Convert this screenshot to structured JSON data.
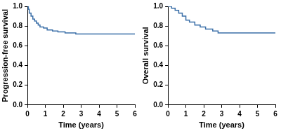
{
  "chart_data": [
    {
      "type": "line",
      "line_style": "step",
      "color": "#3b6fa8",
      "x_label": "Time (years)",
      "y_label": "Progression-free survival",
      "x": [
        0,
        0.05,
        0.1,
        0.2,
        0.3,
        0.4,
        0.5,
        0.6,
        0.7,
        0.9,
        1.1,
        1.4,
        1.7,
        2.1,
        2.7,
        6
      ],
      "values": [
        1.0,
        0.97,
        0.93,
        0.9,
        0.87,
        0.85,
        0.83,
        0.81,
        0.79,
        0.78,
        0.76,
        0.75,
        0.74,
        0.73,
        0.72,
        0.72
      ],
      "xlim": [
        0,
        6
      ],
      "xticks": [
        0,
        1,
        2,
        3,
        4,
        5,
        6
      ],
      "ylim": [
        0,
        1
      ],
      "yticks": [
        {
          "value": 0,
          "label": "0.0"
        },
        0.2,
        0.4,
        0.6,
        0.8,
        {
          "value": 1,
          "label": "1.0"
        }
      ],
      "grid": false
    },
    {
      "type": "line",
      "line_style": "step",
      "color": "#3b6fa8",
      "x_label": "Time (years)",
      "y_label": "Overall survival",
      "x": [
        0,
        0.2,
        0.4,
        0.6,
        0.8,
        1.0,
        1.2,
        1.5,
        1.8,
        2.1,
        2.5,
        2.8,
        6
      ],
      "values": [
        1.0,
        0.98,
        0.96,
        0.93,
        0.9,
        0.86,
        0.84,
        0.81,
        0.79,
        0.77,
        0.75,
        0.73,
        0.73
      ],
      "xlim": [
        0,
        6
      ],
      "xticks": [
        0,
        1,
        2,
        3,
        4,
        5,
        6
      ],
      "ylim": [
        0,
        1
      ],
      "yticks": [
        {
          "value": 0,
          "label": "0.0"
        },
        0.2,
        0.4,
        0.6,
        0.8,
        {
          "value": 1,
          "label": "1.0"
        }
      ],
      "grid": false
    }
  ]
}
